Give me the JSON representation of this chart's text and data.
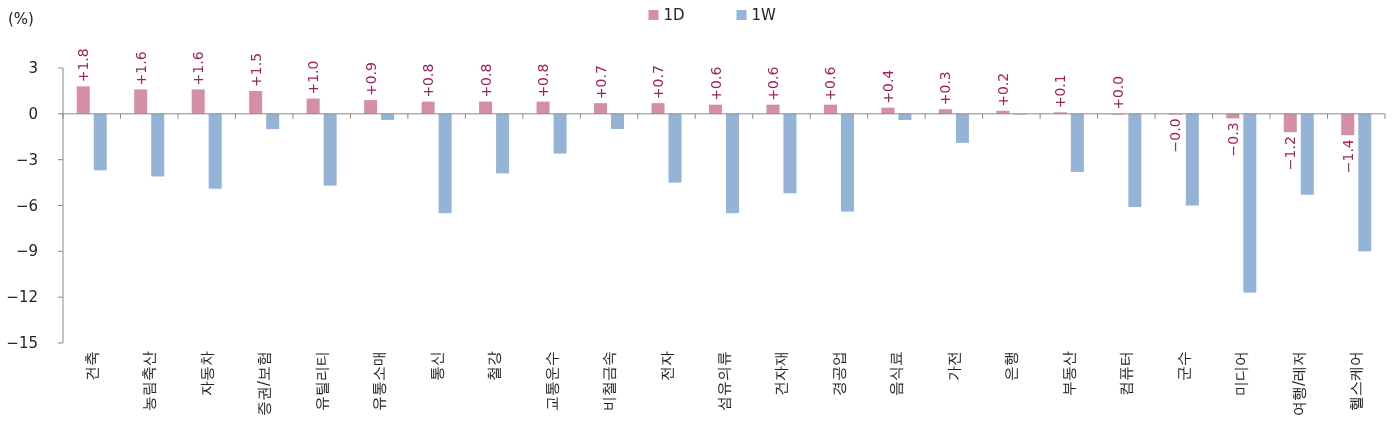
{
  "chart_data": {
    "type": "bar",
    "ylabel": "(%)",
    "categories": [
      "건축",
      "농림축산",
      "자동차",
      "증권/보험",
      "유틸리티",
      "유통소매",
      "통신",
      "철강",
      "교통운수",
      "비철금속",
      "전자",
      "섬유의류",
      "건자재",
      "경공업",
      "음식료",
      "가전",
      "은행",
      "부동산",
      "컴퓨터",
      "군수",
      "미디어",
      "여행/레저",
      "헬스케어"
    ],
    "series": [
      {
        "name": "1D",
        "color": "#d48ea5",
        "values": [
          1.8,
          1.6,
          1.6,
          1.5,
          1.0,
          0.9,
          0.8,
          0.8,
          0.8,
          0.7,
          0.7,
          0.6,
          0.6,
          0.6,
          0.4,
          0.3,
          0.2,
          0.1,
          0.0,
          -0.04,
          -0.3,
          -1.2,
          -1.4
        ],
        "value_labels": [
          "+1.8",
          "+1.6",
          "+1.6",
          "+1.5",
          "+1.0",
          "+0.9",
          "+0.8",
          "+0.8",
          "+0.8",
          "+0.7",
          "+0.7",
          "+0.6",
          "+0.6",
          "+0.6",
          "+0.4",
          "+0.3",
          "+0.2",
          "+0.1",
          "+0.0",
          "−0.0",
          "−0.3",
          "−1.2",
          "−1.4"
        ]
      },
      {
        "name": "1W",
        "color": "#95b3d7",
        "values": [
          -3.7,
          -4.1,
          -4.9,
          -1.0,
          -4.7,
          -0.4,
          -6.5,
          -3.9,
          -2.6,
          -1.0,
          -4.5,
          -6.5,
          -5.2,
          -6.4,
          -0.4,
          -1.9,
          0.0,
          -3.8,
          -6.1,
          -6.0,
          -11.7,
          -5.3,
          -9.0
        ]
      }
    ],
    "ylim": [
      -15,
      3
    ],
    "yticks": [
      3,
      0,
      -3,
      -6,
      -9,
      -12,
      -15
    ],
    "legend": "top"
  }
}
